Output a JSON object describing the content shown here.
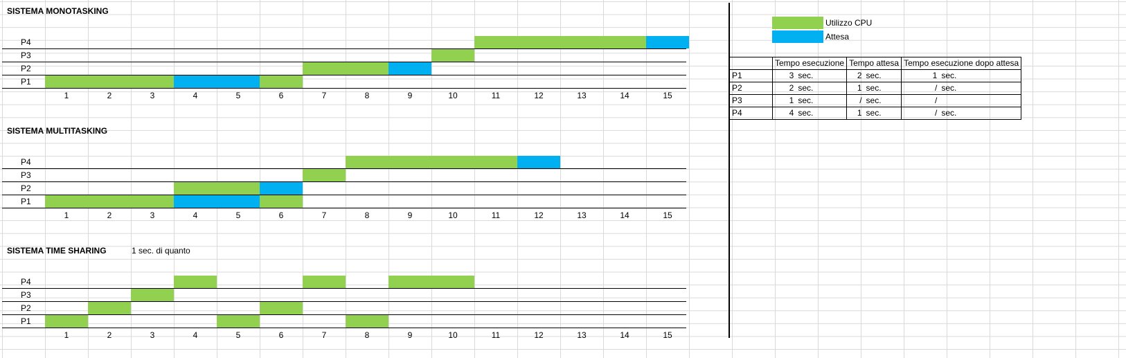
{
  "colors": {
    "cpu": "#92d050",
    "wait": "#00b0f0"
  },
  "sections": [
    {
      "title": "SISTEMA MONOTASKING",
      "note": "",
      "processes": [
        "P4",
        "P3",
        "P2",
        "P1"
      ],
      "bars": [
        {
          "process": "P4",
          "start": 11,
          "end": 14,
          "kind": "cpu"
        },
        {
          "process": "P4",
          "start": 15,
          "end": 15,
          "kind": "wait"
        },
        {
          "process": "P3",
          "start": 10,
          "end": 10,
          "kind": "cpu"
        },
        {
          "process": "P2",
          "start": 7,
          "end": 8,
          "kind": "cpu"
        },
        {
          "process": "P2",
          "start": 9,
          "end": 9,
          "kind": "wait"
        },
        {
          "process": "P1",
          "start": 1,
          "end": 3,
          "kind": "cpu"
        },
        {
          "process": "P1",
          "start": 4,
          "end": 5,
          "kind": "wait"
        },
        {
          "process": "P1",
          "start": 6,
          "end": 6,
          "kind": "cpu"
        }
      ]
    },
    {
      "title": "SISTEMA MULTITASKING",
      "note": "",
      "processes": [
        "P4",
        "P3",
        "P2",
        "P1"
      ],
      "bars": [
        {
          "process": "P4",
          "start": 8,
          "end": 11,
          "kind": "cpu"
        },
        {
          "process": "P4",
          "start": 12,
          "end": 12,
          "kind": "wait"
        },
        {
          "process": "P3",
          "start": 7,
          "end": 7,
          "kind": "cpu"
        },
        {
          "process": "P2",
          "start": 4,
          "end": 5,
          "kind": "cpu"
        },
        {
          "process": "P2",
          "start": 6,
          "end": 6,
          "kind": "wait"
        },
        {
          "process": "P1",
          "start": 1,
          "end": 3,
          "kind": "cpu"
        },
        {
          "process": "P1",
          "start": 4,
          "end": 5,
          "kind": "wait"
        },
        {
          "process": "P1",
          "start": 6,
          "end": 6,
          "kind": "cpu"
        }
      ]
    },
    {
      "title": "SISTEMA TIME SHARING",
      "note": "1 sec. di quanto",
      "processes": [
        "P4",
        "P3",
        "P2",
        "P1"
      ],
      "bars": [
        {
          "process": "P4",
          "start": 4,
          "end": 4,
          "kind": "cpu"
        },
        {
          "process": "P4",
          "start": 7,
          "end": 7,
          "kind": "cpu"
        },
        {
          "process": "P4",
          "start": 9,
          "end": 10,
          "kind": "cpu"
        },
        {
          "process": "P3",
          "start": 3,
          "end": 3,
          "kind": "cpu"
        },
        {
          "process": "P2",
          "start": 2,
          "end": 2,
          "kind": "cpu"
        },
        {
          "process": "P2",
          "start": 6,
          "end": 6,
          "kind": "cpu"
        },
        {
          "process": "P1",
          "start": 1,
          "end": 1,
          "kind": "cpu"
        },
        {
          "process": "P1",
          "start": 5,
          "end": 5,
          "kind": "cpu"
        },
        {
          "process": "P1",
          "start": 8,
          "end": 8,
          "kind": "cpu"
        }
      ]
    }
  ],
  "axis_ticks": [
    "1",
    "2",
    "3",
    "4",
    "5",
    "6",
    "7",
    "8",
    "9",
    "10",
    "11",
    "12",
    "13",
    "14",
    "15"
  ],
  "legend": {
    "cpu_label": "Utilizzo CPU",
    "wait_label": "Attesa"
  },
  "table": {
    "headers": [
      "Tempo esecuzione",
      "Tempo attesa",
      "Tempo esecuzione dopo attesa"
    ],
    "rows": [
      {
        "process": "P1",
        "exec": "3",
        "exec_unit": "sec.",
        "wait": "2",
        "wait_unit": "sec.",
        "after": "1",
        "after_unit": "sec."
      },
      {
        "process": "P2",
        "exec": "2",
        "exec_unit": "sec.",
        "wait": "1",
        "wait_unit": "sec.",
        "after": "/",
        "after_unit": "sec."
      },
      {
        "process": "P3",
        "exec": "1",
        "exec_unit": "sec.",
        "wait": "/",
        "wait_unit": "sec.",
        "after": "/",
        "after_unit": ""
      },
      {
        "process": "P4",
        "exec": "4",
        "exec_unit": "sec.",
        "wait": "1",
        "wait_unit": "sec.",
        "after": "/",
        "after_unit": "sec."
      }
    ]
  }
}
